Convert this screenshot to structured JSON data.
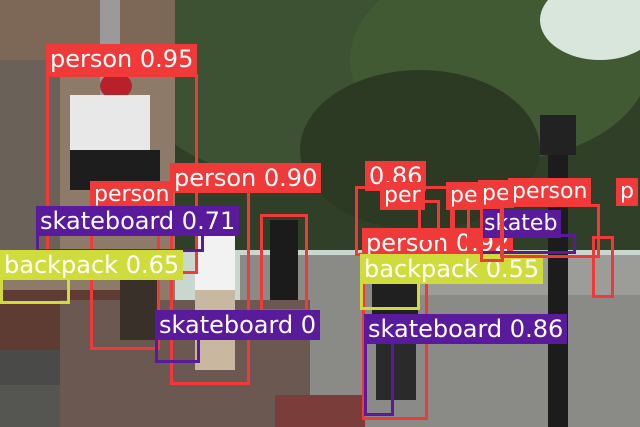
{
  "colors": {
    "person": "#f03a3a",
    "skateboard": "#5a1a9c",
    "backpack": "#d0dc3c"
  },
  "detections": [
    {
      "label": "person 0.95",
      "class": "person"
    },
    {
      "label": "person 0.90",
      "class": "person"
    },
    {
      "label": "0.86",
      "class": "person"
    },
    {
      "label": "person",
      "class": "person"
    },
    {
      "label": "person",
      "class": "person"
    },
    {
      "label": "person 0.92",
      "class": "person"
    },
    {
      "label": "skateboard 0.71",
      "class": "skateboard"
    },
    {
      "label": "skateboard 0",
      "class": "skateboard"
    },
    {
      "label": "skateboard 0.86",
      "class": "skateboard"
    },
    {
      "label": "skateb",
      "class": "skateboard"
    },
    {
      "label": "backpack 0.65",
      "class": "backpack"
    },
    {
      "label": "backpack 0.55",
      "class": "backpack"
    },
    {
      "label": "per",
      "class": "person"
    },
    {
      "label": "pe",
      "class": "person"
    },
    {
      "label": "pe",
      "class": "person"
    },
    {
      "label": "p",
      "class": "person"
    },
    {
      "label": "person",
      "class": "person"
    }
  ]
}
